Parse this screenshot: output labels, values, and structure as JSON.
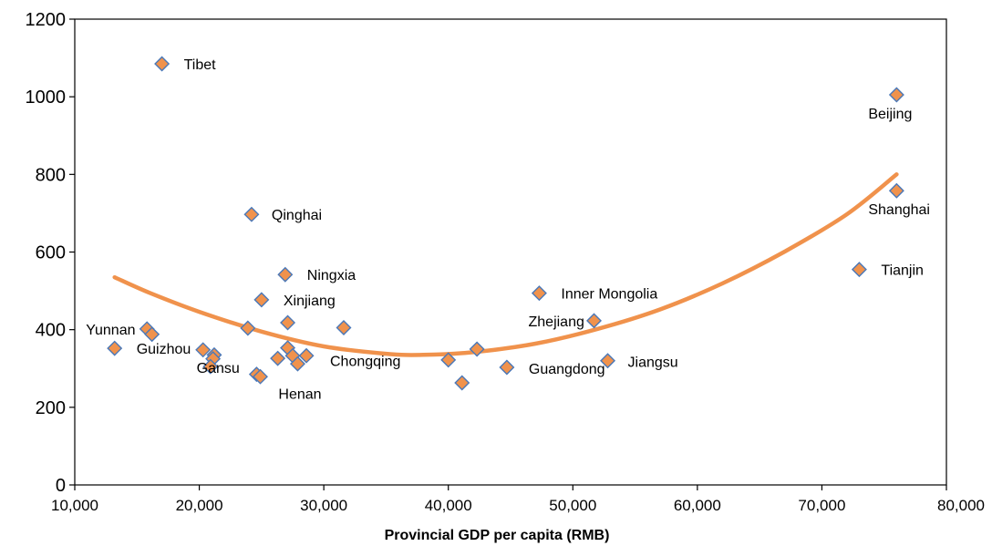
{
  "chart_data": {
    "type": "scatter",
    "title": "",
    "xlabel": "Provincial GDP per capita (RMB)",
    "ylabel": "",
    "xlim": [
      10000,
      80000
    ],
    "ylim": [
      0,
      1200
    ],
    "x_ticks": [
      "10,000",
      "20,000",
      "30,000",
      "40,000",
      "50,000",
      "60,000",
      "70,000",
      "80,000"
    ],
    "y_ticks": [
      "0",
      "200",
      "400",
      "600",
      "800",
      "1000",
      "1200"
    ],
    "grid": false,
    "legend": "none",
    "colors": {
      "marker_fill": "#F0924C",
      "marker_edge": "#4A78B8",
      "trend": "#F0924C",
      "axis": "#000000"
    },
    "points": [
      {
        "x": 17000,
        "y": 1085,
        "label": "Tibet"
      },
      {
        "x": 76000,
        "y": 1005,
        "label": "Beijing"
      },
      {
        "x": 24200,
        "y": 697,
        "label": "Qinghai"
      },
      {
        "x": 76000,
        "y": 758,
        "label": "Shanghai"
      },
      {
        "x": 26900,
        "y": 542,
        "label": "Ningxia"
      },
      {
        "x": 73000,
        "y": 555,
        "label": "Tianjin"
      },
      {
        "x": 25000,
        "y": 477,
        "label": "Xinjiang"
      },
      {
        "x": 47300,
        "y": 494,
        "label": "Inner Mongolia"
      },
      {
        "x": 51700,
        "y": 423,
        "label": "Zhejiang"
      },
      {
        "x": 15800,
        "y": 402,
        "label": "Yunnan"
      },
      {
        "x": 13200,
        "y": 352,
        "label": "Guizhou"
      },
      {
        "x": 20300,
        "y": 348,
        "label": "Gansu"
      },
      {
        "x": 31600,
        "y": 405,
        "label": "Chongqing"
      },
      {
        "x": 24600,
        "y": 285,
        "label": "Henan"
      },
      {
        "x": 44700,
        "y": 303,
        "label": "Guangdong"
      },
      {
        "x": 52800,
        "y": 320,
        "label": "Jiangsu"
      },
      {
        "x": 16200,
        "y": 388,
        "label": ""
      },
      {
        "x": 21200,
        "y": 335,
        "label": ""
      },
      {
        "x": 21100,
        "y": 325,
        "label": ""
      },
      {
        "x": 20900,
        "y": 305,
        "label": ""
      },
      {
        "x": 23900,
        "y": 404,
        "label": ""
      },
      {
        "x": 27100,
        "y": 418,
        "label": ""
      },
      {
        "x": 26300,
        "y": 326,
        "label": ""
      },
      {
        "x": 27100,
        "y": 353,
        "label": ""
      },
      {
        "x": 27500,
        "y": 333,
        "label": ""
      },
      {
        "x": 27900,
        "y": 312,
        "label": ""
      },
      {
        "x": 28600,
        "y": 333,
        "label": ""
      },
      {
        "x": 24900,
        "y": 279,
        "label": ""
      },
      {
        "x": 40000,
        "y": 322,
        "label": ""
      },
      {
        "x": 41100,
        "y": 263,
        "label": ""
      },
      {
        "x": 42300,
        "y": 350,
        "label": ""
      }
    ],
    "trendline": {
      "type": "polynomial-2",
      "x": [
        13200,
        16000,
        20000,
        25000,
        30000,
        35000,
        38000,
        42000,
        47000,
        52000,
        57000,
        62000,
        67000,
        72000,
        76000
      ],
      "y": [
        535,
        495,
        446,
        395,
        357,
        338,
        335,
        342,
        364,
        402,
        452,
        519,
        601,
        697,
        800
      ]
    }
  }
}
